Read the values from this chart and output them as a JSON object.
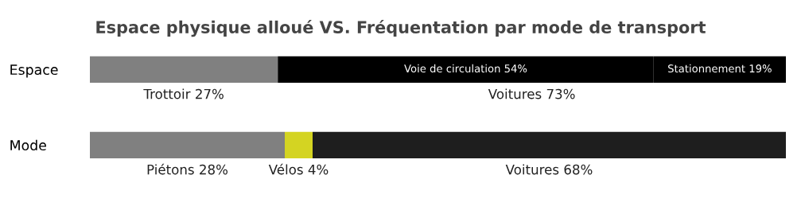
{
  "chart_data": {
    "type": "bar",
    "orientation": "horizontal",
    "stacked": true,
    "title": "Espace physique alloué VS. Fréquentation par mode de transport",
    "categories": [
      "Espace",
      "Mode"
    ],
    "series": [
      {
        "color": "#808080",
        "values": [
          27,
          null
        ],
        "value_labels": [
          "Trottoir 27%",
          null
        ]
      },
      {
        "color": "#000000",
        "values": [
          54,
          null
        ],
        "value_labels": [
          "Voie de circulation 54%",
          null
        ]
      },
      {
        "color": "#000000",
        "values": [
          19,
          null
        ],
        "value_labels": [
          "Stationnement 19%",
          null
        ]
      },
      {
        "color": "#808080",
        "values": [
          null,
          28
        ],
        "value_labels": [
          null,
          "Piétons 28%"
        ]
      },
      {
        "color": "#d4d422",
        "values": [
          null,
          4
        ],
        "value_labels": [
          null,
          "Vélos 4%"
        ]
      },
      {
        "color": "#1e1e1e",
        "values": [
          null,
          68
        ],
        "value_labels": [
          null,
          "Voitures 68%"
        ]
      }
    ],
    "annotations": [
      "Voitures 73%"
    ],
    "xlim": [
      0,
      100
    ],
    "tick_labels": "y",
    "grid": false,
    "legend": false
  }
}
